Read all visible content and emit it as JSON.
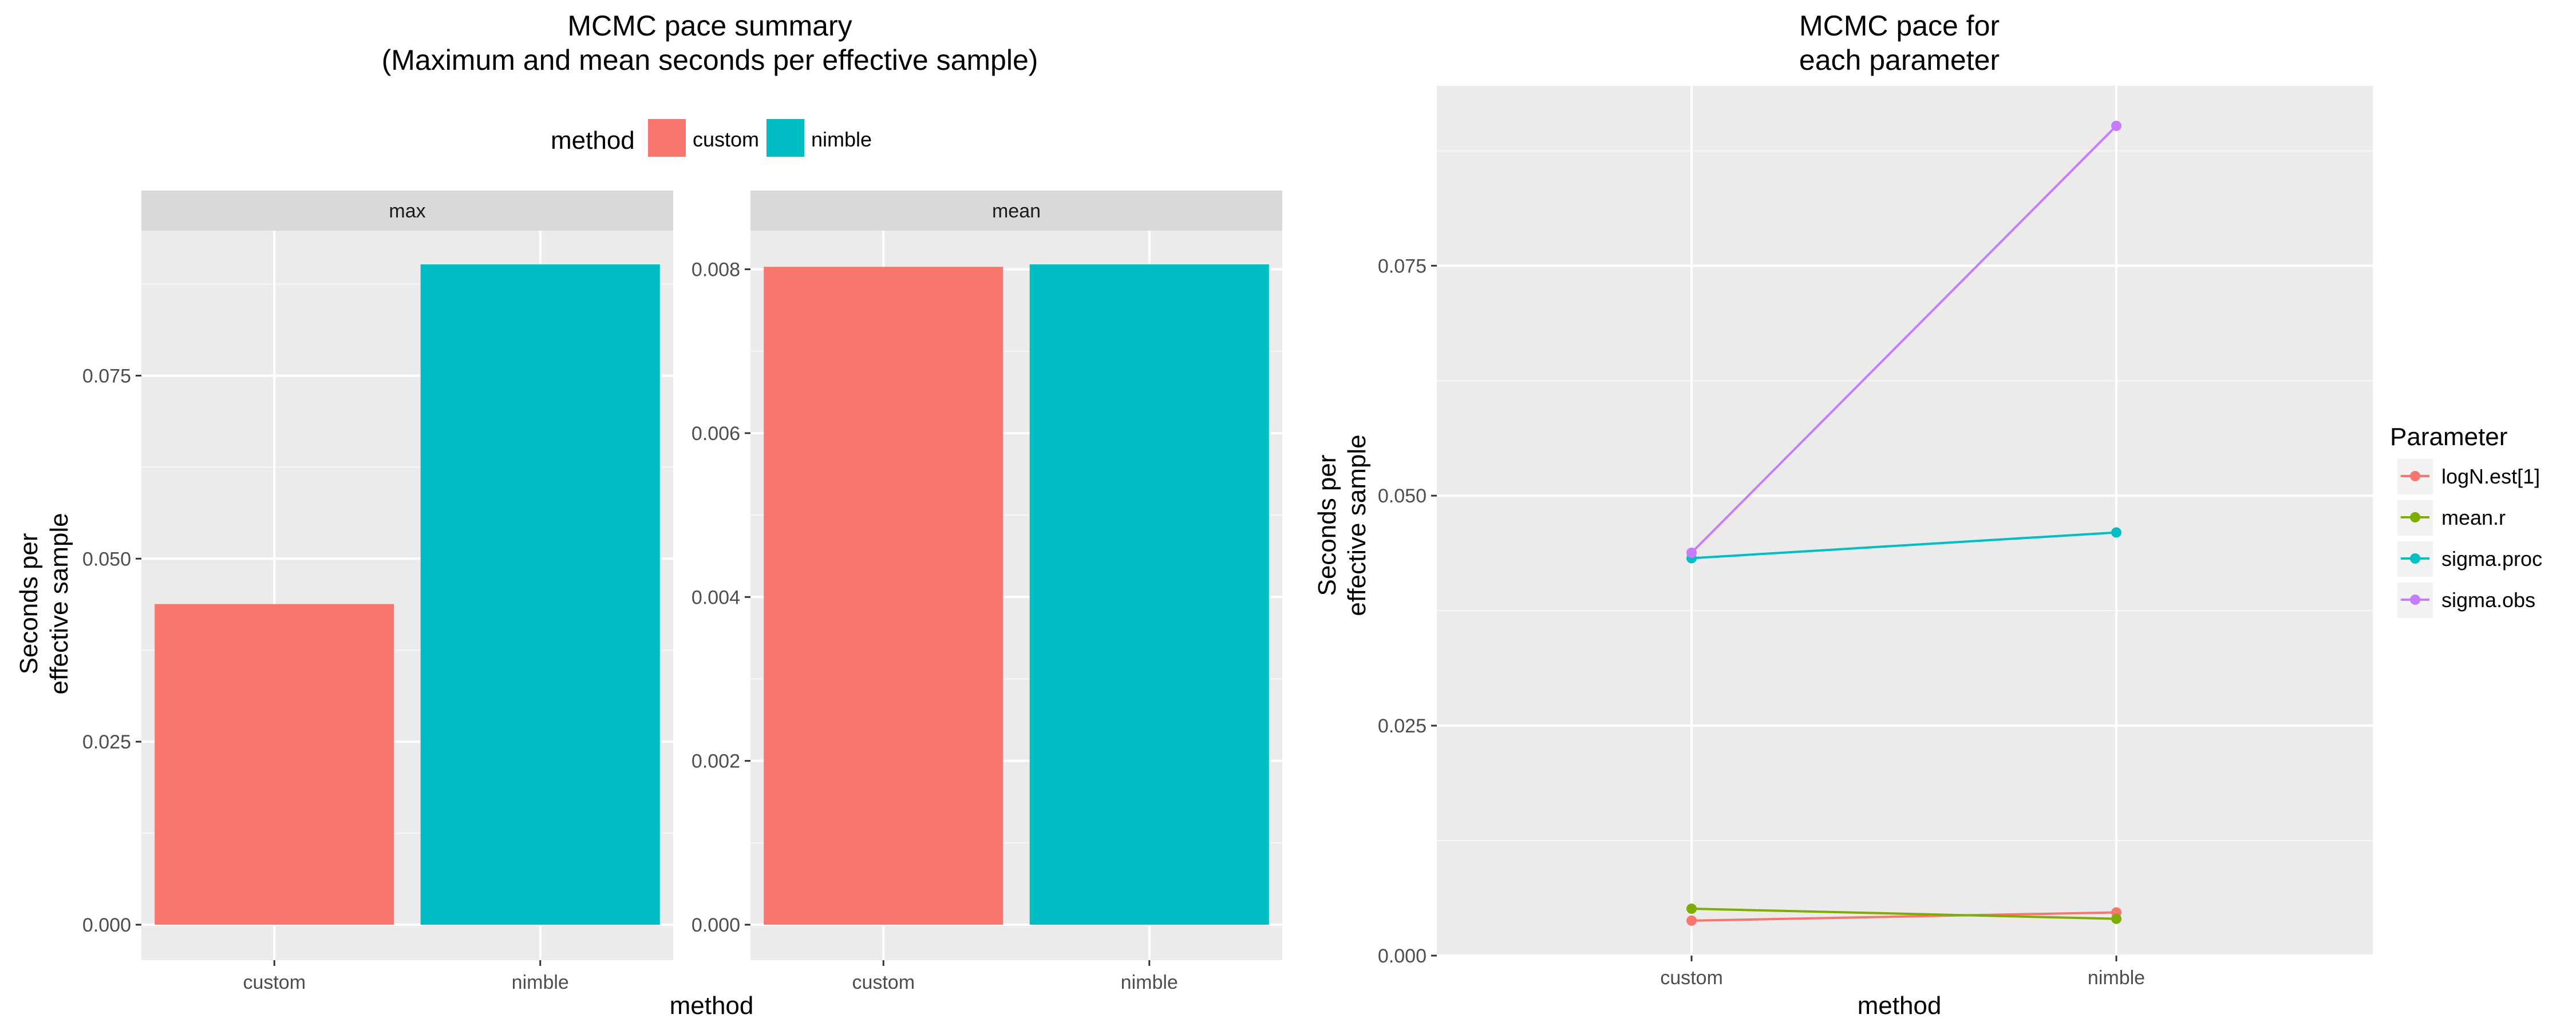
{
  "left_panel": {
    "title_line1": "MCMC pace summary",
    "title_line2": "(Maximum and mean seconds per effective sample)",
    "legend_title": "method",
    "x_axis_label": "method",
    "y_axis_label_line1": "Seconds per",
    "y_axis_label_line2": "effective sample"
  },
  "right_panel": {
    "title_line1": "MCMC pace for",
    "title_line2": "each parameter",
    "legend_title": "Parameter",
    "x_axis_label": "method",
    "y_axis_label_line1": "Seconds per",
    "y_axis_label_line2": "effective sample"
  },
  "colors": {
    "panel_bg": "#EBEBEB",
    "grid_major": "#FFFFFF",
    "strip_bg": "#D9D9D9",
    "custom": "#F8766D",
    "nimble": "#00BFC4"
  },
  "chart_data": [
    {
      "type": "bar",
      "facet": "max",
      "categories": [
        "custom",
        "nimble"
      ],
      "values": [
        0.0438,
        0.0902
      ],
      "ylim": [
        0,
        0.0902
      ],
      "yticks": [
        0.0,
        0.025,
        0.05,
        0.075
      ],
      "ytick_labels": [
        "0.000",
        "0.025",
        "0.050",
        "0.075"
      ],
      "colors": [
        "#F8766D",
        "#00BFC4"
      ],
      "legend": [
        "custom",
        "nimble"
      ],
      "legend_position": "top",
      "grid": true
    },
    {
      "type": "bar",
      "facet": "mean",
      "categories": [
        "custom",
        "nimble"
      ],
      "values": [
        0.00803,
        0.00806
      ],
      "ylim": [
        0,
        0.00806
      ],
      "yticks": [
        0.0,
        0.002,
        0.004,
        0.006,
        0.008
      ],
      "ytick_labels": [
        "0.000",
        "0.002",
        "0.004",
        "0.006",
        "0.008"
      ],
      "colors": [
        "#F8766D",
        "#00BFC4"
      ],
      "grid": true
    },
    {
      "type": "line",
      "categories": [
        "custom",
        "nimble"
      ],
      "series": [
        {
          "name": "logN.est[1]",
          "color": "#F8766D",
          "values": [
            0.0038,
            0.0047
          ]
        },
        {
          "name": "mean.r",
          "color": "#7CAE00",
          "values": [
            0.0051,
            0.004
          ]
        },
        {
          "name": "sigma.proc",
          "color": "#00BFC4",
          "values": [
            0.0432,
            0.046
          ]
        },
        {
          "name": "sigma.obs",
          "color": "#C77CFF",
          "values": [
            0.0438,
            0.0902
          ]
        }
      ],
      "ylim": [
        0,
        0.0902
      ],
      "yticks": [
        0.0,
        0.025,
        0.05,
        0.075
      ],
      "ytick_labels": [
        "0.000",
        "0.025",
        "0.050",
        "0.075"
      ],
      "legend_position": "right",
      "grid": true
    }
  ]
}
